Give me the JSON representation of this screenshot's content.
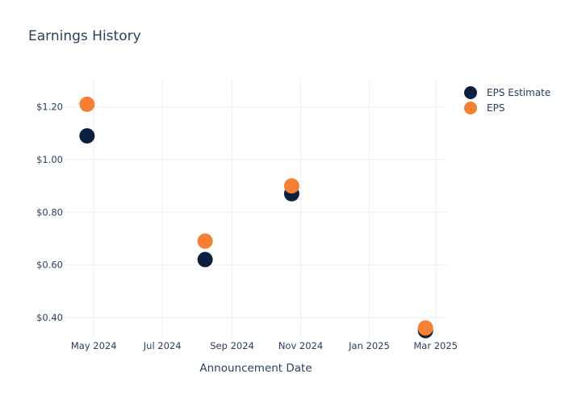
{
  "chart_data": {
    "type": "scatter",
    "title": "Earnings History",
    "xlabel": "Announcement Date",
    "ylabel": "",
    "x_ticks": [
      "2024-05-01",
      "2024-07-01",
      "2024-09-01",
      "2024-11-01",
      "2025-01-01",
      "2025-03-01"
    ],
    "x_tick_labels": [
      "May 2024",
      "Jul 2024",
      "Sep 2024",
      "Nov 2024",
      "Jan 2025",
      "Mar 2025"
    ],
    "xlim": [
      "2024-04-05",
      "2025-03-12"
    ],
    "y_ticks": [
      0.4,
      0.6,
      0.8,
      1.0,
      1.2
    ],
    "y_tick_labels": [
      "$0.40",
      "$0.60",
      "$0.80",
      "$1.00",
      "$1.20"
    ],
    "ylim": [
      0.32,
      1.3
    ],
    "grid": true,
    "legend_position": "top-right",
    "series": [
      {
        "name": "EPS Estimate",
        "color": "#0b1f3f",
        "points": [
          {
            "x": "2024-04-25",
            "y": 1.09
          },
          {
            "x": "2024-08-08",
            "y": 0.62
          },
          {
            "x": "2024-10-24",
            "y": 0.87
          },
          {
            "x": "2025-02-20",
            "y": 0.35
          }
        ]
      },
      {
        "name": "EPS",
        "color": "#f58033",
        "points": [
          {
            "x": "2024-04-25",
            "y": 1.21
          },
          {
            "x": "2024-08-08",
            "y": 0.69
          },
          {
            "x": "2024-10-24",
            "y": 0.9
          },
          {
            "x": "2025-02-20",
            "y": 0.36
          }
        ]
      }
    ]
  }
}
